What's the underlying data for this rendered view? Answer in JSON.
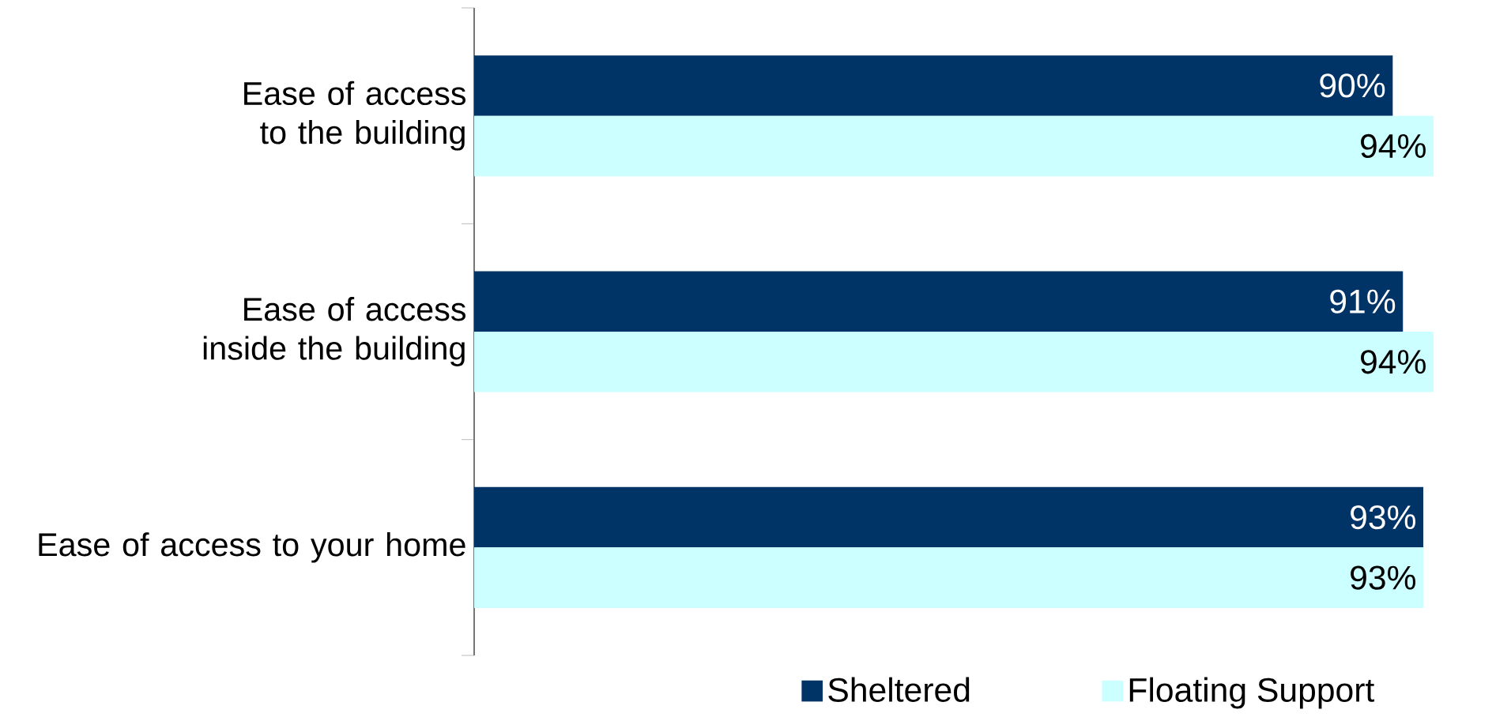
{
  "chart_data": {
    "type": "bar",
    "orientation": "horizontal",
    "categories": [
      "Ease of access to the building",
      "Ease of access inside the building",
      "Ease of access to your home"
    ],
    "series": [
      {
        "name": "Sheltered",
        "color": "#003366",
        "values": [
          90,
          91,
          93
        ],
        "value_labels": [
          "90%",
          "91%",
          "93%"
        ]
      },
      {
        "name": "Floating Support",
        "color": "#ccffff",
        "values": [
          94,
          94,
          93
        ],
        "value_labels": [
          "94%",
          "94%",
          "93%"
        ]
      }
    ],
    "legend": "bottom"
  }
}
